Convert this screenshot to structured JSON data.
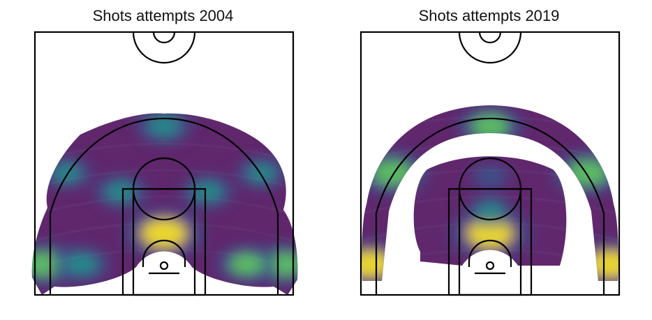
{
  "chart_data": [
    {
      "type": "heatmap",
      "title": "Shots attempts 2004",
      "colormap": "viridis",
      "axes_visible": false,
      "hotspots": [
        {
          "zone": "restricted area front",
          "intensity": 0.85
        },
        {
          "zone": "left corner three",
          "intensity": 0.65
        },
        {
          "zone": "right corner three",
          "intensity": 0.6
        },
        {
          "zone": "right baseline mid-range",
          "intensity": 0.5
        },
        {
          "zone": "left baseline mid-range",
          "intensity": 0.45
        },
        {
          "zone": "top of arc three",
          "intensity": 0.45
        },
        {
          "zone": "elbow left",
          "intensity": 0.4
        },
        {
          "zone": "elbow right",
          "intensity": 0.4
        },
        {
          "zone": "left wing three",
          "intensity": 0.35
        },
        {
          "zone": "right wing three",
          "intensity": 0.35
        }
      ]
    },
    {
      "type": "heatmap",
      "title": "Shots attempts 2019",
      "colormap": "viridis",
      "axes_visible": false,
      "hotspots": [
        {
          "zone": "restricted area front",
          "intensity": 0.85
        },
        {
          "zone": "left corner three",
          "intensity": 0.75
        },
        {
          "zone": "right corner three",
          "intensity": 0.75
        },
        {
          "zone": "left wing three",
          "intensity": 0.7
        },
        {
          "zone": "right wing three",
          "intensity": 0.7
        },
        {
          "zone": "top of arc three",
          "intensity": 0.6
        },
        {
          "zone": "paint",
          "intensity": 0.3
        },
        {
          "zone": "mid-range",
          "intensity": 0.15
        }
      ]
    }
  ],
  "colors": {
    "low": "#440154",
    "mid_low": "#3b528b",
    "mid": "#21918c",
    "mid_high": "#5ec962",
    "high": "#fde725",
    "court_lines": "#000000"
  }
}
